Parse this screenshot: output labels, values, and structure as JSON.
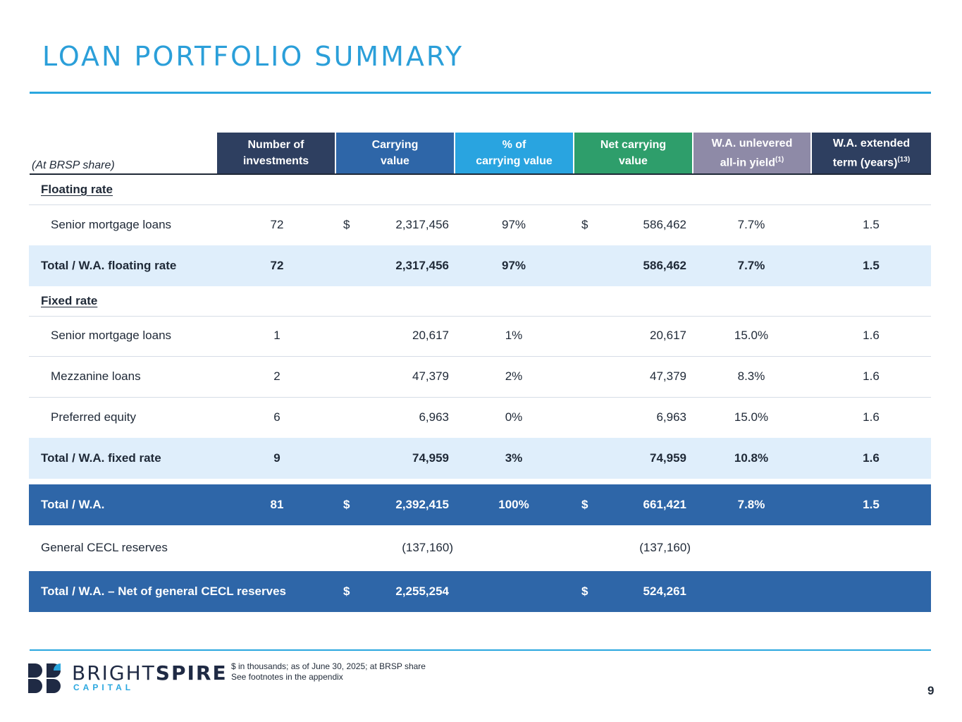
{
  "title": "LOAN PORTFOLIO SUMMARY",
  "table": {
    "share_label": "(At BRSP share)",
    "headers": [
      {
        "line1": "Number of",
        "line2": "investments",
        "sup": "",
        "color": "#2e3f60"
      },
      {
        "line1": "Carrying",
        "line2": "value",
        "sup": "",
        "color": "#2e66a8"
      },
      {
        "line1": "% of",
        "line2": "carrying value",
        "sup": "",
        "color": "#29a4e0"
      },
      {
        "line1": "Net carrying",
        "line2": "value",
        "sup": "",
        "color": "#2e9e6b"
      },
      {
        "line1": "W.A. unlevered",
        "line2": "all-in yield",
        "sup": "(1)",
        "color": "#8e8aa7"
      },
      {
        "line1": "W.A. extended",
        "line2": "term (years)",
        "sup": "(13)",
        "color": "#2e3f60"
      }
    ],
    "currency_symbol": "$",
    "floating_section": "Floating rate",
    "floating_rows": [
      {
        "label": "Senior mortgage loans",
        "count": "72",
        "carrying": "2,317,456",
        "pct": "97%",
        "net": "586,462",
        "yield": "7.7%",
        "term": "1.5"
      }
    ],
    "floating_total": {
      "label": "Total / W.A. floating rate",
      "count": "72",
      "carrying": "2,317,456",
      "pct": "97%",
      "net": "586,462",
      "yield": "7.7%",
      "term": "1.5"
    },
    "fixed_section": "Fixed rate",
    "fixed_rows": [
      {
        "label": "Senior mortgage loans",
        "count": "1",
        "carrying": "20,617",
        "pct": "1%",
        "net": "20,617",
        "yield": "15.0%",
        "term": "1.6"
      },
      {
        "label": "Mezzanine loans",
        "count": "2",
        "carrying": "47,379",
        "pct": "2%",
        "net": "47,379",
        "yield": "8.3%",
        "term": "1.6"
      },
      {
        "label": "Preferred equity",
        "count": "6",
        "carrying": "6,963",
        "pct": "0%",
        "net": "6,963",
        "yield": "15.0%",
        "term": "1.6"
      }
    ],
    "fixed_total": {
      "label": "Total / W.A. fixed rate",
      "count": "9",
      "carrying": "74,959",
      "pct": "3%",
      "net": "74,959",
      "yield": "10.8%",
      "term": "1.6"
    },
    "grand_total": {
      "label": "Total / W.A.",
      "count": "81",
      "carrying": "2,392,415",
      "pct": "100%",
      "net": "661,421",
      "yield": "7.8%",
      "term": "1.5"
    },
    "cecl": {
      "label": "General CECL reserves",
      "carrying": "(137,160)",
      "net": "(137,160)"
    },
    "net_total": {
      "label": "Total / W.A. – Net of general CECL reserves",
      "carrying": "2,255,254",
      "net": "524,261"
    }
  },
  "footer": {
    "brand_light": "BRIGHT",
    "brand_bold": "SPIRE",
    "brand_sub": "CAPITAL",
    "note1": "$ in thousands; as of June 30, 2025; at BRSP share",
    "note2": "See footnotes in the appendix",
    "page_number": "9"
  }
}
